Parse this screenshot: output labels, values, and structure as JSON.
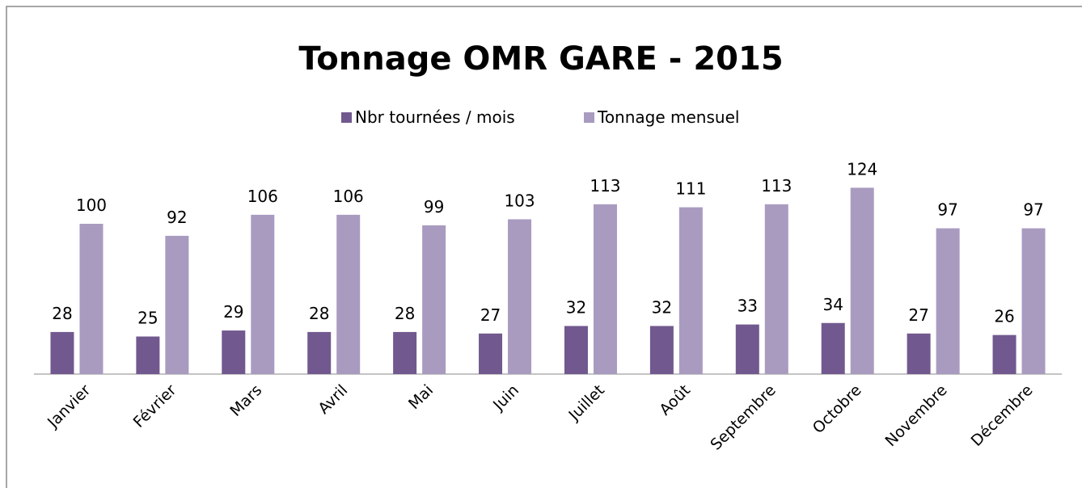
{
  "chart_data": {
    "type": "bar",
    "title": "Tonnage OMR GARE - 2015",
    "categories": [
      "Janvier",
      "Février",
      "Mars",
      "Avril",
      "Mai",
      "Juin",
      "Juillet",
      "Août",
      "Septembre",
      "Octobre",
      "Novembre",
      "Décembre"
    ],
    "series": [
      {
        "name": "Nbr tournées / mois",
        "color": "#71598f",
        "values": [
          28,
          25,
          29,
          28,
          28,
          27,
          32,
          32,
          33,
          34,
          27,
          26
        ]
      },
      {
        "name": "Tonnage mensuel",
        "color": "#a99bc0",
        "values": [
          100,
          92,
          106,
          106,
          99,
          103,
          113,
          111,
          113,
          124,
          97,
          97
        ]
      }
    ],
    "legend": "top"
  }
}
